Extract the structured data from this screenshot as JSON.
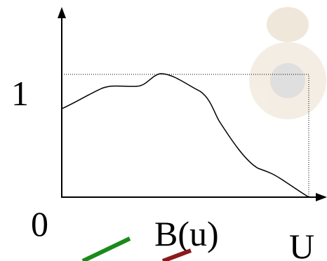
{
  "labels": {
    "y_one": "1",
    "origin": "0",
    "curve": "B(u)",
    "x_end": "U"
  }
}
